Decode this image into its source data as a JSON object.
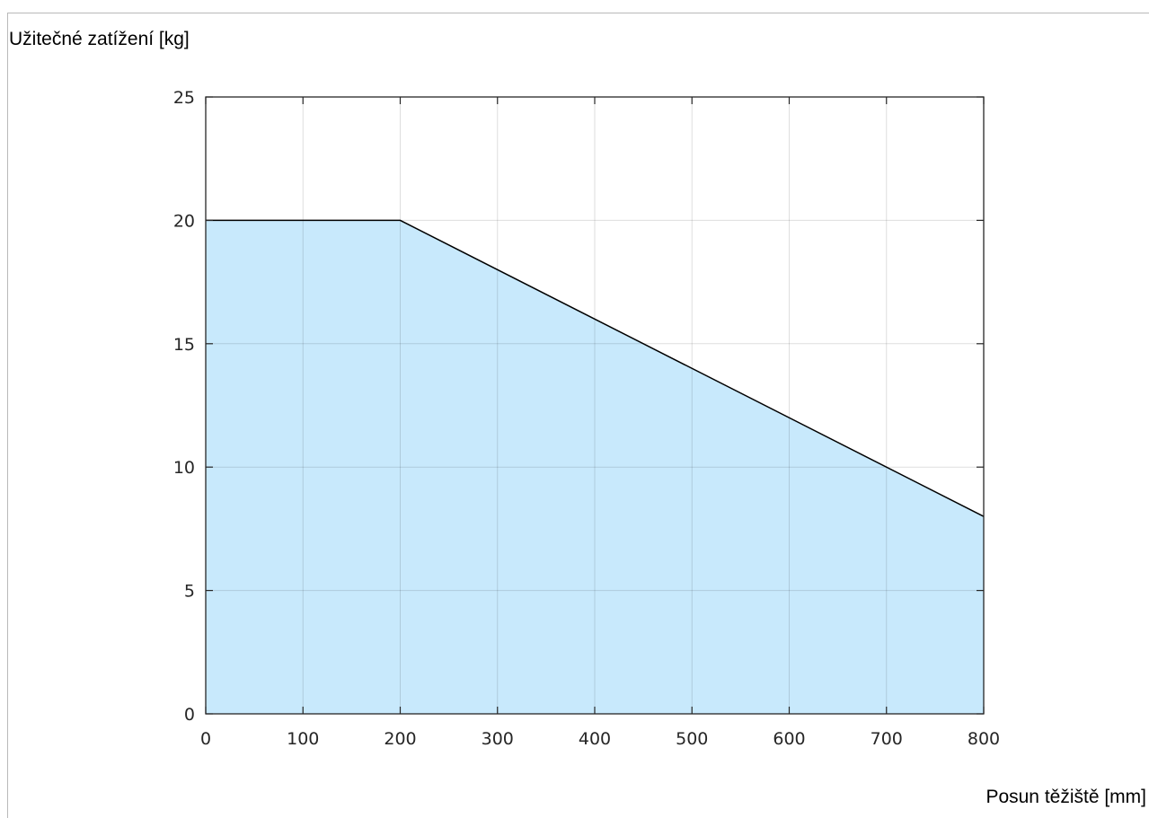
{
  "chart_data": {
    "type": "area",
    "xlabel": "Posun těžiště [mm]",
    "ylabel": "Užitečné zatížení [kg]",
    "x": [
      0,
      200,
      800
    ],
    "series": [
      {
        "values": [
          20,
          20,
          8
        ]
      }
    ],
    "xlim": [
      0,
      800
    ],
    "ylim": [
      0,
      25
    ],
    "xticks": [
      0,
      100,
      200,
      300,
      400,
      500,
      600,
      700,
      800
    ],
    "yticks": [
      0,
      5,
      10,
      15,
      20,
      25
    ],
    "grid": true,
    "colors": {
      "fill": "#c8e9fc",
      "line": "#000000",
      "grid": "#dcdcdc",
      "axis": "#262626"
    }
  }
}
